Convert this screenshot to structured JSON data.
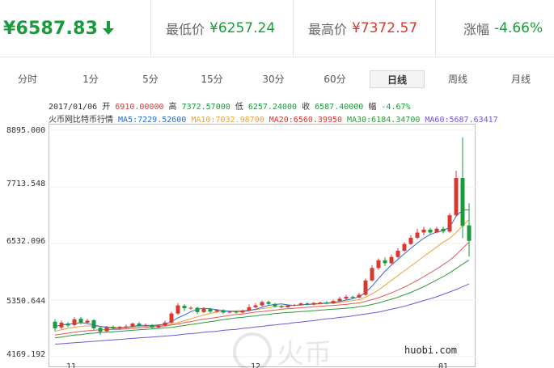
{
  "header": {
    "price": "¥6587.83",
    "low_label": "最低价",
    "low_value": "¥6257.24",
    "high_label": "最高价",
    "high_value": "¥7372.57",
    "change_label": "涨幅",
    "change_value": "-4.66%",
    "colors": {
      "down": "#1a9a3a",
      "up": "#d9382f"
    },
    "trend_icon": "down-arrow-icon"
  },
  "tabs": [
    {
      "label": "分时"
    },
    {
      "label": "1分"
    },
    {
      "label": "5分"
    },
    {
      "label": "15分"
    },
    {
      "label": "30分"
    },
    {
      "label": "60分"
    },
    {
      "label": "日线",
      "active": true
    },
    {
      "label": "周线"
    },
    {
      "label": "月线"
    }
  ],
  "ohlc_line": {
    "date": "2017/01/06",
    "open_label": "开",
    "open": "6910.00000",
    "high_label": "高",
    "high": "7372.57000",
    "low_label": "低",
    "low": "6257.24000",
    "close_label": "收",
    "close": "6587.40000",
    "change_label": "幅",
    "change": "-4.67%"
  },
  "ma_line": {
    "source": "火币网比特币行情",
    "ma5": "MA5:7229.52600",
    "ma10": "MA10:7032.98700",
    "ma20": "MA20:6560.39950",
    "ma30": "MA30:6184.34700",
    "ma60": "MA60:5687.63417"
  },
  "chart": {
    "y_labels": [
      "8895.000",
      "7713.548",
      "6532.096",
      "5350.644",
      "4169.192"
    ],
    "x_labels": [
      "11",
      "12",
      "01"
    ],
    "watermark": "huobi.com",
    "watermark_logo": "火币",
    "colors": {
      "up": "#d9382f",
      "down": "#1a9a3a",
      "ma5": "#2a6ad9",
      "ma10": "#e8a534",
      "ma20": "#e05a5a",
      "ma30": "#2e9a3a",
      "ma60": "#6a5ad9"
    }
  },
  "chart_data": {
    "type": "candlestick",
    "ylim": [
      4169.192,
      8895.0
    ],
    "candles": [
      [
        4900,
        4760,
        4950,
        4700
      ],
      [
        4780,
        4880,
        4920,
        4740
      ],
      [
        4860,
        4820,
        4890,
        4780
      ],
      [
        4830,
        4950,
        4990,
        4800
      ],
      [
        4960,
        4880,
        5000,
        4840
      ],
      [
        4880,
        4920,
        4960,
        4860
      ],
      [
        4930,
        4760,
        4950,
        4720
      ],
      [
        4770,
        4690,
        4800,
        4620
      ],
      [
        4700,
        4780,
        4810,
        4680
      ],
      [
        4790,
        4760,
        4820,
        4740
      ],
      [
        4760,
        4790,
        4810,
        4740
      ],
      [
        4780,
        4800,
        4840,
        4760
      ],
      [
        4800,
        4860,
        4880,
        4780
      ],
      [
        4860,
        4820,
        4890,
        4790
      ],
      [
        4820,
        4830,
        4860,
        4800
      ],
      [
        4830,
        4780,
        4850,
        4750
      ],
      [
        4780,
        4820,
        4840,
        4760
      ],
      [
        4820,
        4880,
        4920,
        4800
      ],
      [
        4880,
        5070,
        5110,
        4860
      ],
      [
        5070,
        5240,
        5290,
        5040
      ],
      [
        5230,
        5180,
        5260,
        5120
      ],
      [
        5180,
        5190,
        5220,
        5150
      ],
      [
        5190,
        5100,
        5210,
        5060
      ],
      [
        5100,
        5170,
        5200,
        5080
      ],
      [
        5170,
        5110,
        5190,
        5080
      ],
      [
        5110,
        5140,
        5160,
        5090
      ],
      [
        5140,
        5090,
        5160,
        5060
      ],
      [
        5090,
        5110,
        5130,
        5070
      ],
      [
        5110,
        5090,
        5130,
        5070
      ],
      [
        5090,
        5130,
        5150,
        5070
      ],
      [
        5130,
        5200,
        5260,
        5110
      ],
      [
        5200,
        5240,
        5290,
        5180
      ],
      [
        5240,
        5310,
        5340,
        5220
      ],
      [
        5310,
        5270,
        5340,
        5240
      ],
      [
        5270,
        5220,
        5290,
        5190
      ],
      [
        5220,
        5200,
        5250,
        5180
      ],
      [
        5200,
        5240,
        5260,
        5190
      ],
      [
        5240,
        5250,
        5270,
        5220
      ],
      [
        5250,
        5280,
        5300,
        5230
      ],
      [
        5280,
        5260,
        5300,
        5240
      ],
      [
        5260,
        5290,
        5310,
        5240
      ],
      [
        5290,
        5300,
        5320,
        5270
      ],
      [
        5300,
        5280,
        5330,
        5260
      ],
      [
        5280,
        5330,
        5360,
        5270
      ],
      [
        5330,
        5380,
        5420,
        5310
      ],
      [
        5380,
        5420,
        5460,
        5360
      ],
      [
        5420,
        5400,
        5440,
        5380
      ],
      [
        5400,
        5460,
        5500,
        5390
      ],
      [
        5460,
        5760,
        5800,
        5440
      ],
      [
        5760,
        6020,
        6080,
        5740
      ],
      [
        6020,
        6180,
        6220,
        5980
      ],
      [
        6180,
        6120,
        6240,
        6060
      ],
      [
        6120,
        6250,
        6300,
        6100
      ],
      [
        6250,
        6380,
        6430,
        6220
      ],
      [
        6380,
        6520,
        6560,
        6360
      ],
      [
        6520,
        6650,
        6700,
        6500
      ],
      [
        6650,
        6760,
        6840,
        6620
      ],
      [
        6760,
        6820,
        6880,
        6700
      ],
      [
        6820,
        6760,
        6860,
        6720
      ],
      [
        6760,
        6840,
        6880,
        6740
      ],
      [
        6840,
        6780,
        6880,
        6740
      ],
      [
        6780,
        7120,
        7160,
        6760
      ],
      [
        7120,
        7900,
        8050,
        7100
      ],
      [
        7900,
        6900,
        8750,
        6640
      ],
      [
        6910,
        6587,
        7372,
        6257
      ]
    ],
    "ma5": [
      4800,
      4830,
      4850,
      4860,
      4880,
      4860,
      4830,
      4800,
      4780,
      4760,
      4760,
      4780,
      4800,
      4820,
      4820,
      4820,
      4830,
      4850,
      4900,
      4980,
      5040,
      5110,
      5160,
      5180,
      5170,
      5150,
      5130,
      5120,
      5110,
      5110,
      5130,
      5160,
      5200,
      5240,
      5260,
      5270,
      5250,
      5240,
      5250,
      5260,
      5270,
      5280,
      5290,
      5300,
      5320,
      5350,
      5380,
      5420,
      5510,
      5640,
      5800,
      5950,
      6080,
      6200,
      6320,
      6430,
      6540,
      6640,
      6720,
      6770,
      6800,
      6870,
      7100,
      7230,
      7230
    ],
    "ma10": [
      4700,
      4730,
      4760,
      4780,
      4800,
      4810,
      4810,
      4800,
      4790,
      4780,
      4780,
      4780,
      4790,
      4800,
      4800,
      4810,
      4820,
      4830,
      4850,
      4880,
      4920,
      4960,
      5000,
      5040,
      5070,
      5100,
      5110,
      5120,
      5130,
      5130,
      5140,
      5150,
      5170,
      5190,
      5210,
      5220,
      5230,
      5240,
      5250,
      5260,
      5260,
      5270,
      5280,
      5290,
      5300,
      5320,
      5340,
      5360,
      5410,
      5480,
      5560,
      5660,
      5760,
      5860,
      5960,
      6060,
      6160,
      6260,
      6360,
      6460,
      6560,
      6640,
      6760,
      6900,
      7030
    ],
    "ma20": [
      4620,
      4640,
      4660,
      4680,
      4700,
      4710,
      4720,
      4730,
      4730,
      4740,
      4740,
      4750,
      4760,
      4770,
      4780,
      4790,
      4800,
      4810,
      4830,
      4850,
      4880,
      4900,
      4930,
      4950,
      4970,
      4990,
      5010,
      5030,
      5050,
      5060,
      5080,
      5100,
      5110,
      5130,
      5140,
      5160,
      5170,
      5180,
      5190,
      5200,
      5210,
      5220,
      5230,
      5240,
      5250,
      5260,
      5280,
      5290,
      5320,
      5360,
      5400,
      5450,
      5500,
      5560,
      5620,
      5690,
      5760,
      5840,
      5920,
      6000,
      6090,
      6180,
      6300,
      6430,
      6560
    ],
    "ma30": [
      4560,
      4580,
      4600,
      4620,
      4630,
      4650,
      4660,
      4670,
      4680,
      4690,
      4700,
      4710,
      4720,
      4730,
      4740,
      4750,
      4760,
      4770,
      4780,
      4800,
      4820,
      4840,
      4860,
      4880,
      4900,
      4920,
      4940,
      4960,
      4980,
      4990,
      5010,
      5020,
      5040,
      5050,
      5070,
      5080,
      5090,
      5100,
      5110,
      5120,
      5130,
      5140,
      5150,
      5160,
      5170,
      5180,
      5190,
      5210,
      5230,
      5260,
      5290,
      5330,
      5370,
      5410,
      5460,
      5510,
      5570,
      5630,
      5700,
      5770,
      5840,
      5920,
      6010,
      6100,
      6184
    ],
    "ma60": [
      4430,
      4440,
      4450,
      4460,
      4470,
      4480,
      4490,
      4500,
      4510,
      4520,
      4530,
      4540,
      4550,
      4560,
      4570,
      4580,
      4590,
      4600,
      4610,
      4620,
      4640,
      4650,
      4660,
      4680,
      4690,
      4700,
      4720,
      4730,
      4740,
      4760,
      4770,
      4790,
      4800,
      4820,
      4830,
      4850,
      4860,
      4880,
      4890,
      4910,
      4920,
      4940,
      4960,
      4970,
      4990,
      5000,
      5020,
      5040,
      5060,
      5080,
      5100,
      5130,
      5160,
      5190,
      5220,
      5260,
      5300,
      5340,
      5380,
      5420,
      5470,
      5520,
      5570,
      5630,
      5687
    ]
  }
}
